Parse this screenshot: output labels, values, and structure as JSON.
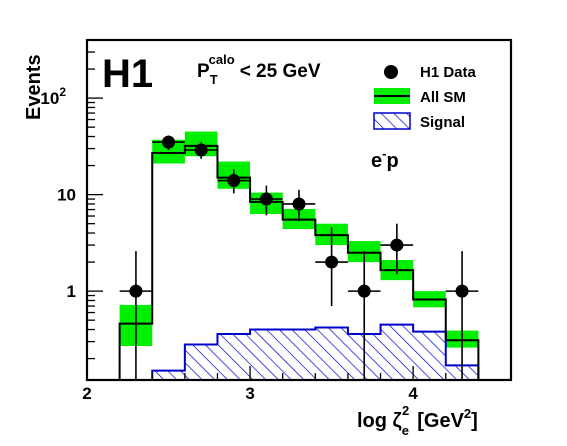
{
  "chart_data": {
    "type": "histogram",
    "experiment_label": "H1",
    "cut_label": {
      "p": "P",
      "sub": "T",
      "sup": "calo",
      "rest": "< 25 GeV"
    },
    "beam_label": {
      "base": "e",
      "sup": "-",
      "rest": "p"
    },
    "xlabel": {
      "text": "log ζ",
      "sub": "e",
      "sup": "2",
      "unit": "[GeV",
      "unit_sup": "2",
      "unit_end": "]"
    },
    "ylabel": "Events",
    "xlim": [
      2,
      4.6
    ],
    "ylim": [
      0.12,
      400
    ],
    "yscale": "log",
    "x_ticks": [
      {
        "value": 2,
        "label": "2"
      },
      {
        "value": 3,
        "label": "3"
      },
      {
        "value": 4,
        "label": "4"
      }
    ],
    "y_ticks": [
      {
        "value": 1,
        "label": "1"
      },
      {
        "value": 10,
        "label": "10"
      },
      {
        "value": 100,
        "label": "10",
        "sup": "2"
      }
    ],
    "bin_edges": [
      2.2,
      2.4,
      2.6,
      2.8,
      3.0,
      3.2,
      3.4,
      3.6,
      3.8,
      4.0,
      4.2,
      4.4
    ],
    "sm_values": [
      0.46,
      27,
      32,
      15,
      8.4,
      5.5,
      3.8,
      2.5,
      1.65,
      0.82,
      0.31
    ],
    "sm_band": [
      [
        0.27,
        0.72
      ],
      [
        21,
        37
      ],
      [
        25,
        45
      ],
      [
        11.5,
        22
      ],
      [
        6.3,
        10.5
      ],
      [
        4.4,
        7.1
      ],
      [
        3.0,
        5.0
      ],
      [
        2.0,
        3.3
      ],
      [
        1.3,
        2.1
      ],
      [
        0.68,
        1.0
      ],
      [
        0.26,
        0.39
      ]
    ],
    "signal_values": [
      0.12,
      0.15,
      0.28,
      0.36,
      0.4,
      0.4,
      0.42,
      0.36,
      0.45,
      0.38,
      0.17
    ],
    "data_points": [
      {
        "x": 2.3,
        "y": 1,
        "yerr": [
          0.12,
          2.6
        ]
      },
      {
        "x": 2.5,
        "y": 35,
        "yerr": [
          29,
          41
        ]
      },
      {
        "x": 2.7,
        "y": 29,
        "yerr": [
          23.5,
          35
        ]
      },
      {
        "x": 2.9,
        "y": 14,
        "yerr": [
          10.3,
          18.3
        ]
      },
      {
        "x": 3.1,
        "y": 9,
        "yerr": [
          6.1,
          12.4
        ]
      },
      {
        "x": 3.3,
        "y": 8,
        "yerr": [
          5.3,
          11.2
        ]
      },
      {
        "x": 3.5,
        "y": 2,
        "yerr": [
          0.7,
          4.6
        ]
      },
      {
        "x": 3.7,
        "y": 1,
        "yerr": [
          0.12,
          2.6
        ]
      },
      {
        "x": 3.9,
        "y": 3,
        "yerr": [
          1.5,
          5.0
        ]
      },
      {
        "x": 4.3,
        "y": 1,
        "yerr": [
          0.12,
          2.6
        ]
      }
    ],
    "legend": [
      {
        "label": "H1 Data",
        "marker": "dot"
      },
      {
        "label": "All SM",
        "marker": "band"
      },
      {
        "label": "Signal",
        "marker": "hatch"
      }
    ],
    "colors": {
      "band": "#00ee00",
      "signal": "#0000cc",
      "data": "#000000",
      "sm_line": "#000000"
    }
  }
}
